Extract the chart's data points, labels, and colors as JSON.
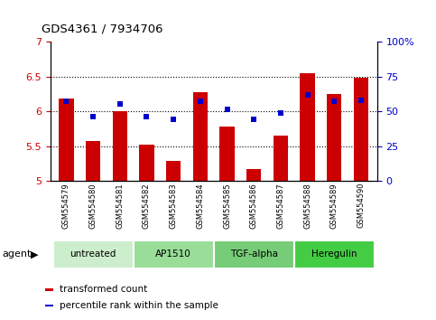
{
  "title": "GDS4361 / 7934706",
  "samples": [
    "GSM554579",
    "GSM554580",
    "GSM554581",
    "GSM554582",
    "GSM554583",
    "GSM554584",
    "GSM554585",
    "GSM554586",
    "GSM554587",
    "GSM554588",
    "GSM554589",
    "GSM554590"
  ],
  "bar_values": [
    6.18,
    5.57,
    6.0,
    5.52,
    5.28,
    6.27,
    5.78,
    5.17,
    5.65,
    6.55,
    6.25,
    6.48
  ],
  "dot_percentiles": [
    57,
    46,
    55,
    46,
    44,
    57,
    51,
    44,
    49,
    62,
    57,
    58
  ],
  "bar_color": "#cc0000",
  "dot_color": "#0000cc",
  "ylim_left": [
    5.0,
    7.0
  ],
  "ylim_right": [
    0,
    100
  ],
  "yticks_left": [
    5.0,
    5.5,
    6.0,
    6.5,
    7.0
  ],
  "ytick_labels_left": [
    "5",
    "5.5",
    "6",
    "6.5",
    "7"
  ],
  "yticks_right": [
    0,
    25,
    50,
    75,
    100
  ],
  "ytick_labels_right": [
    "0",
    "25",
    "50",
    "75",
    "100%"
  ],
  "hlines": [
    5.5,
    6.0,
    6.5
  ],
  "bar_bottom": 5.0,
  "agent_groups": [
    {
      "label": "untreated",
      "start": 0,
      "end": 3,
      "color": "#cceecc"
    },
    {
      "label": "AP1510",
      "start": 3,
      "end": 6,
      "color": "#99dd99"
    },
    {
      "label": "TGF-alpha",
      "start": 6,
      "end": 9,
      "color": "#77cc77"
    },
    {
      "label": "Heregulin",
      "start": 9,
      "end": 12,
      "color": "#44cc44"
    }
  ],
  "legend_items": [
    {
      "label": "transformed count",
      "color": "#cc0000",
      "marker": "s"
    },
    {
      "label": "percentile rank within the sample",
      "color": "#0000cc",
      "marker": "s"
    }
  ],
  "bar_width": 0.55,
  "plot_bg": "#ffffff",
  "tick_area_bg": "#cccccc",
  "agent_label": "agent"
}
